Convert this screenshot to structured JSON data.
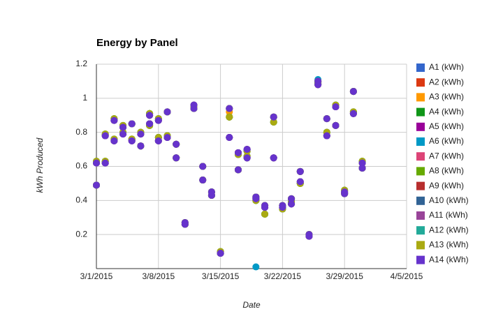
{
  "chart_data": {
    "type": "scatter",
    "title": "Energy by Panel",
    "x_label": "Date",
    "y_label": "kWh Produced",
    "x": [
      "2015-03-01",
      "2015-03-01",
      "2015-03-02",
      "2015-03-02",
      "2015-03-03",
      "2015-03-03",
      "2015-03-04",
      "2015-03-04",
      "2015-03-05",
      "2015-03-05",
      "2015-03-06",
      "2015-03-06",
      "2015-03-07",
      "2015-03-07",
      "2015-03-08",
      "2015-03-08",
      "2015-03-09",
      "2015-03-09",
      "2015-03-10",
      "2015-03-10",
      "2015-03-11",
      "2015-03-11",
      "2015-03-12",
      "2015-03-12",
      "2015-03-13",
      "2015-03-13",
      "2015-03-14",
      "2015-03-14",
      "2015-03-15",
      "2015-03-15",
      "2015-03-16",
      "2015-03-16",
      "2015-03-17",
      "2015-03-17",
      "2015-03-18",
      "2015-03-18",
      "2015-03-19",
      "2015-03-19",
      "2015-03-20",
      "2015-03-20",
      "2015-03-21",
      "2015-03-21",
      "2015-03-22",
      "2015-03-22",
      "2015-03-23",
      "2015-03-23",
      "2015-03-24",
      "2015-03-24",
      "2015-03-25",
      "2015-03-25",
      "2015-03-26",
      "2015-03-26",
      "2015-03-27",
      "2015-03-27",
      "2015-03-28",
      "2015-03-28",
      "2015-03-29",
      "2015-03-29",
      "2015-03-30",
      "2015-03-30",
      "2015-03-31",
      "2015-03-31"
    ],
    "xlim": [
      "2015-03-01",
      "2015-04-05"
    ],
    "xticks": [
      {
        "value": "2015-03-01",
        "label": "3/1/2015"
      },
      {
        "value": "2015-03-08",
        "label": "3/8/2015"
      },
      {
        "value": "2015-03-15",
        "label": "3/15/2015"
      },
      {
        "value": "2015-03-22",
        "label": "3/22/2015"
      },
      {
        "value": "2015-03-29",
        "label": "3/29/2015"
      },
      {
        "value": "2015-04-05",
        "label": "4/5/2015"
      }
    ],
    "ylim": [
      0,
      1.2
    ],
    "yticks": [
      0.2,
      0.4,
      0.6,
      0.8,
      1,
      1.2
    ],
    "grid": true,
    "legend": "right",
    "series": [
      {
        "name": "A1 (kWh)",
        "color": "#3366cc",
        "values": [
          0.62,
          0.49,
          0.78,
          0.62,
          0.87,
          0.75,
          0.83,
          0.79,
          0.85,
          0.75,
          0.79,
          0.72,
          0.9,
          0.85,
          0.87,
          0.75,
          0.92,
          0.77,
          0.73,
          0.65,
          0.27,
          0.26,
          0.96,
          0.94,
          0.6,
          0.52,
          0.45,
          0.43,
          0.09,
          0.09,
          0.94,
          0.77,
          0.68,
          0.58,
          0.7,
          0.65,
          0.42,
          0.41,
          0.37,
          0.36,
          0.89,
          0.65,
          0.37,
          0.36,
          0.41,
          0.38,
          0.57,
          0.51,
          0.2,
          0.19,
          1.1,
          1.08,
          0.88,
          0.78,
          0.95,
          0.84,
          0.45,
          0.44,
          1.04,
          0.91,
          0.62,
          0.59
        ]
      },
      {
        "name": "A2 (kWh)",
        "color": "#dc3912",
        "values": [
          0.63,
          0.49,
          0.79,
          0.63,
          0.88,
          0.76,
          0.84,
          0.8,
          0.85,
          0.76,
          0.8,
          0.72,
          0.91,
          0.84,
          0.88,
          0.77,
          0.92,
          0.78,
          0.73,
          0.65,
          0.27,
          0.26,
          0.95,
          0.94,
          0.6,
          0.52,
          0.45,
          0.43,
          0.1,
          0.09,
          0.94,
          0.89,
          0.67,
          0.58,
          0.69,
          0.66,
          0.42,
          0.4,
          0.37,
          0.32,
          0.89,
          0.86,
          0.37,
          0.35,
          0.41,
          0.39,
          0.57,
          0.5,
          0.2,
          0.2,
          1.1,
          1.09,
          0.88,
          0.8,
          0.96,
          0.84,
          0.46,
          0.44,
          1.04,
          0.92,
          0.63,
          0.59
        ]
      },
      {
        "name": "A3 (kWh)",
        "color": "#ff9900",
        "values": [
          0.63,
          0.49,
          0.79,
          0.63,
          0.88,
          0.76,
          0.84,
          0.8,
          0.85,
          0.76,
          0.8,
          0.72,
          0.91,
          0.84,
          0.88,
          0.77,
          0.92,
          0.78,
          0.73,
          0.65,
          0.27,
          0.26,
          0.95,
          0.94,
          0.6,
          0.52,
          0.45,
          0.43,
          0.1,
          0.09,
          0.92,
          0.89,
          0.67,
          0.58,
          0.69,
          0.66,
          0.42,
          0.4,
          0.37,
          0.32,
          0.89,
          0.86,
          0.37,
          0.35,
          0.41,
          0.39,
          0.57,
          0.5,
          0.2,
          0.2,
          1.1,
          1.09,
          0.88,
          0.8,
          0.96,
          0.84,
          0.46,
          0.44,
          1.04,
          0.92,
          0.63,
          0.59
        ]
      },
      {
        "name": "A4 (kWh)",
        "color": "#109618",
        "values": [
          0.63,
          0.49,
          0.79,
          0.63,
          0.88,
          0.76,
          0.84,
          0.8,
          0.85,
          0.76,
          0.8,
          0.72,
          0.91,
          0.84,
          0.88,
          0.77,
          0.92,
          0.78,
          0.73,
          0.65,
          0.27,
          0.26,
          0.95,
          0.94,
          0.6,
          0.52,
          0.45,
          0.43,
          0.1,
          0.09,
          0.94,
          0.89,
          0.67,
          0.58,
          0.69,
          0.66,
          0.42,
          0.4,
          0.37,
          0.32,
          0.89,
          0.86,
          0.37,
          0.35,
          0.41,
          0.39,
          0.57,
          0.5,
          0.2,
          0.2,
          1.1,
          1.09,
          0.88,
          0.8,
          0.96,
          0.84,
          0.46,
          0.44,
          1.04,
          0.92,
          0.63,
          0.59
        ]
      },
      {
        "name": "A5 (kWh)",
        "color": "#990099",
        "values": [
          0.62,
          0.49,
          0.78,
          0.62,
          0.87,
          0.75,
          0.83,
          0.79,
          0.85,
          0.75,
          0.79,
          0.72,
          0.9,
          0.85,
          0.87,
          0.75,
          0.92,
          0.77,
          0.73,
          0.65,
          0.27,
          0.26,
          0.96,
          0.94,
          0.6,
          0.52,
          0.45,
          0.43,
          0.09,
          0.09,
          0.94,
          0.77,
          0.68,
          0.58,
          0.7,
          0.65,
          0.42,
          0.41,
          0.37,
          0.36,
          0.89,
          0.65,
          0.37,
          0.36,
          0.41,
          0.38,
          0.57,
          0.51,
          0.2,
          0.19,
          1.1,
          1.08,
          0.88,
          0.78,
          0.95,
          0.84,
          0.45,
          0.44,
          1.04,
          0.91,
          0.62,
          0.59
        ]
      },
      {
        "name": "A6 (kWh)",
        "color": "#0099c6",
        "values": [
          0.62,
          0.49,
          0.78,
          0.62,
          0.87,
          0.75,
          0.83,
          0.79,
          0.85,
          0.75,
          0.79,
          0.72,
          0.9,
          0.85,
          0.87,
          0.75,
          0.92,
          0.77,
          0.73,
          0.65,
          0.27,
          0.26,
          0.96,
          0.94,
          0.6,
          0.52,
          0.45,
          0.43,
          0.09,
          0.09,
          0.94,
          0.77,
          0.68,
          0.58,
          0.7,
          0.65,
          0.42,
          0.01,
          0.37,
          0.36,
          0.89,
          0.65,
          0.37,
          0.36,
          0.41,
          0.38,
          0.57,
          0.51,
          0.2,
          0.19,
          1.11,
          1.08,
          0.88,
          0.78,
          0.95,
          0.84,
          0.45,
          0.44,
          1.04,
          0.91,
          0.62,
          0.59
        ]
      },
      {
        "name": "A7 (kWh)",
        "color": "#dd4477",
        "values": [
          0.62,
          0.49,
          0.78,
          0.62,
          0.87,
          0.75,
          0.83,
          0.79,
          0.85,
          0.75,
          0.79,
          0.72,
          0.9,
          0.85,
          0.87,
          0.75,
          0.92,
          0.77,
          0.73,
          0.65,
          0.27,
          0.26,
          0.96,
          0.94,
          0.6,
          0.52,
          0.45,
          0.43,
          0.09,
          0.09,
          0.94,
          0.77,
          0.68,
          0.58,
          0.7,
          0.65,
          0.42,
          0.41,
          0.37,
          0.36,
          0.89,
          0.65,
          0.37,
          0.36,
          0.41,
          0.38,
          0.57,
          0.51,
          0.2,
          0.19,
          1.1,
          1.08,
          0.88,
          0.78,
          0.95,
          0.84,
          0.45,
          0.44,
          1.04,
          0.91,
          0.62,
          0.59
        ]
      },
      {
        "name": "A8 (kWh)",
        "color": "#66aa00",
        "values": [
          0.63,
          0.49,
          0.79,
          0.63,
          0.88,
          0.76,
          0.84,
          0.8,
          0.85,
          0.76,
          0.8,
          0.72,
          0.91,
          0.84,
          0.88,
          0.77,
          0.92,
          0.78,
          0.73,
          0.65,
          0.27,
          0.26,
          0.95,
          0.94,
          0.6,
          0.52,
          0.45,
          0.43,
          0.1,
          0.09,
          0.94,
          0.89,
          0.67,
          0.58,
          0.69,
          0.66,
          0.42,
          0.4,
          0.37,
          0.32,
          0.89,
          0.86,
          0.37,
          0.35,
          0.41,
          0.39,
          0.57,
          0.5,
          0.2,
          0.2,
          1.1,
          1.09,
          0.88,
          0.8,
          0.96,
          0.84,
          0.46,
          0.44,
          1.04,
          0.92,
          0.63,
          0.59
        ]
      },
      {
        "name": "A9 (kWh)",
        "color": "#b82e2e",
        "values": [
          0.62,
          0.49,
          0.78,
          0.62,
          0.87,
          0.75,
          0.83,
          0.79,
          0.85,
          0.75,
          0.79,
          0.72,
          0.9,
          0.85,
          0.87,
          0.75,
          0.92,
          0.77,
          0.73,
          0.65,
          0.27,
          0.26,
          0.96,
          0.94,
          0.6,
          0.52,
          0.45,
          0.43,
          0.09,
          0.09,
          0.94,
          0.77,
          0.68,
          0.58,
          0.7,
          0.65,
          0.42,
          0.41,
          0.37,
          0.36,
          0.89,
          0.65,
          0.37,
          0.36,
          0.41,
          0.38,
          0.57,
          0.51,
          0.2,
          0.19,
          1.1,
          1.08,
          0.88,
          0.78,
          0.95,
          0.84,
          0.45,
          0.44,
          1.04,
          0.91,
          0.62,
          0.59
        ]
      },
      {
        "name": "A10 (kWh)",
        "color": "#316395",
        "values": [
          0.62,
          0.49,
          0.78,
          0.62,
          0.87,
          0.75,
          0.83,
          0.79,
          0.85,
          0.75,
          0.79,
          0.72,
          0.9,
          0.85,
          0.87,
          0.75,
          0.92,
          0.77,
          0.73,
          0.65,
          0.27,
          0.26,
          0.96,
          0.94,
          0.6,
          0.52,
          0.45,
          0.43,
          0.09,
          0.09,
          0.94,
          0.77,
          0.68,
          0.58,
          0.7,
          0.65,
          0.42,
          0.41,
          0.37,
          0.36,
          0.89,
          0.65,
          0.37,
          0.36,
          0.41,
          0.38,
          0.57,
          0.51,
          0.2,
          0.19,
          1.1,
          1.08,
          0.88,
          0.78,
          0.95,
          0.84,
          0.45,
          0.44,
          1.04,
          0.91,
          0.62,
          0.59
        ]
      },
      {
        "name": "A11 (kWh)",
        "color": "#994499",
        "values": [
          0.62,
          0.49,
          0.78,
          0.62,
          0.87,
          0.75,
          0.83,
          0.79,
          0.85,
          0.75,
          0.79,
          0.72,
          0.9,
          0.85,
          0.87,
          0.75,
          0.92,
          0.77,
          0.73,
          0.65,
          0.27,
          0.26,
          0.96,
          0.94,
          0.6,
          0.52,
          0.45,
          0.43,
          0.09,
          0.09,
          0.94,
          0.77,
          0.68,
          0.58,
          0.7,
          0.65,
          0.42,
          0.41,
          0.37,
          0.36,
          0.89,
          0.65,
          0.37,
          0.36,
          0.41,
          0.38,
          0.57,
          0.51,
          0.2,
          0.19,
          1.1,
          1.08,
          0.88,
          0.78,
          0.95,
          0.84,
          0.45,
          0.44,
          1.04,
          0.91,
          0.62,
          0.59
        ]
      },
      {
        "name": "A12 (kWh)",
        "color": "#22aa99",
        "values": [
          0.63,
          0.49,
          0.79,
          0.63,
          0.88,
          0.76,
          0.84,
          0.8,
          0.85,
          0.76,
          0.8,
          0.72,
          0.91,
          0.84,
          0.88,
          0.77,
          0.92,
          0.78,
          0.73,
          0.65,
          0.27,
          0.26,
          0.95,
          0.94,
          0.6,
          0.52,
          0.45,
          0.43,
          0.1,
          0.09,
          0.94,
          0.89,
          0.67,
          0.58,
          0.69,
          0.66,
          0.42,
          0.4,
          0.37,
          0.32,
          0.89,
          0.86,
          0.37,
          0.35,
          0.41,
          0.39,
          0.57,
          0.5,
          0.2,
          0.2,
          1.1,
          1.09,
          0.88,
          0.8,
          0.96,
          0.84,
          0.46,
          0.44,
          1.04,
          0.92,
          0.63,
          0.59
        ]
      },
      {
        "name": "A13 (kWh)",
        "color": "#aaaa11",
        "values": [
          0.63,
          0.49,
          0.79,
          0.63,
          0.88,
          0.76,
          0.84,
          0.8,
          0.85,
          0.76,
          0.8,
          0.72,
          0.91,
          0.84,
          0.88,
          0.77,
          0.92,
          0.78,
          0.73,
          0.65,
          0.27,
          0.26,
          0.95,
          0.94,
          0.6,
          0.52,
          0.45,
          0.43,
          0.1,
          0.09,
          0.94,
          0.89,
          0.67,
          0.58,
          0.69,
          0.66,
          0.42,
          0.4,
          0.37,
          0.32,
          0.89,
          0.86,
          0.37,
          0.35,
          0.41,
          0.39,
          0.57,
          0.5,
          0.2,
          0.2,
          1.1,
          1.09,
          0.88,
          0.8,
          0.96,
          0.84,
          0.46,
          0.44,
          1.04,
          0.92,
          0.63,
          0.59
        ]
      },
      {
        "name": "A14 (kWh)",
        "color": "#6633cc",
        "values": [
          0.62,
          0.49,
          0.78,
          0.62,
          0.87,
          0.75,
          0.83,
          0.79,
          0.85,
          0.75,
          0.79,
          0.72,
          0.9,
          0.85,
          0.87,
          0.75,
          0.92,
          0.77,
          0.73,
          0.65,
          0.27,
          0.26,
          0.96,
          0.94,
          0.6,
          0.52,
          0.45,
          0.43,
          0.09,
          0.09,
          0.94,
          0.77,
          0.68,
          0.58,
          0.7,
          0.65,
          0.42,
          0.41,
          0.37,
          0.36,
          0.89,
          0.65,
          0.37,
          0.36,
          0.41,
          0.38,
          0.57,
          0.51,
          0.2,
          0.19,
          1.1,
          1.08,
          0.88,
          0.78,
          0.95,
          0.84,
          0.45,
          0.44,
          1.04,
          0.91,
          0.62,
          0.59
        ]
      }
    ]
  }
}
